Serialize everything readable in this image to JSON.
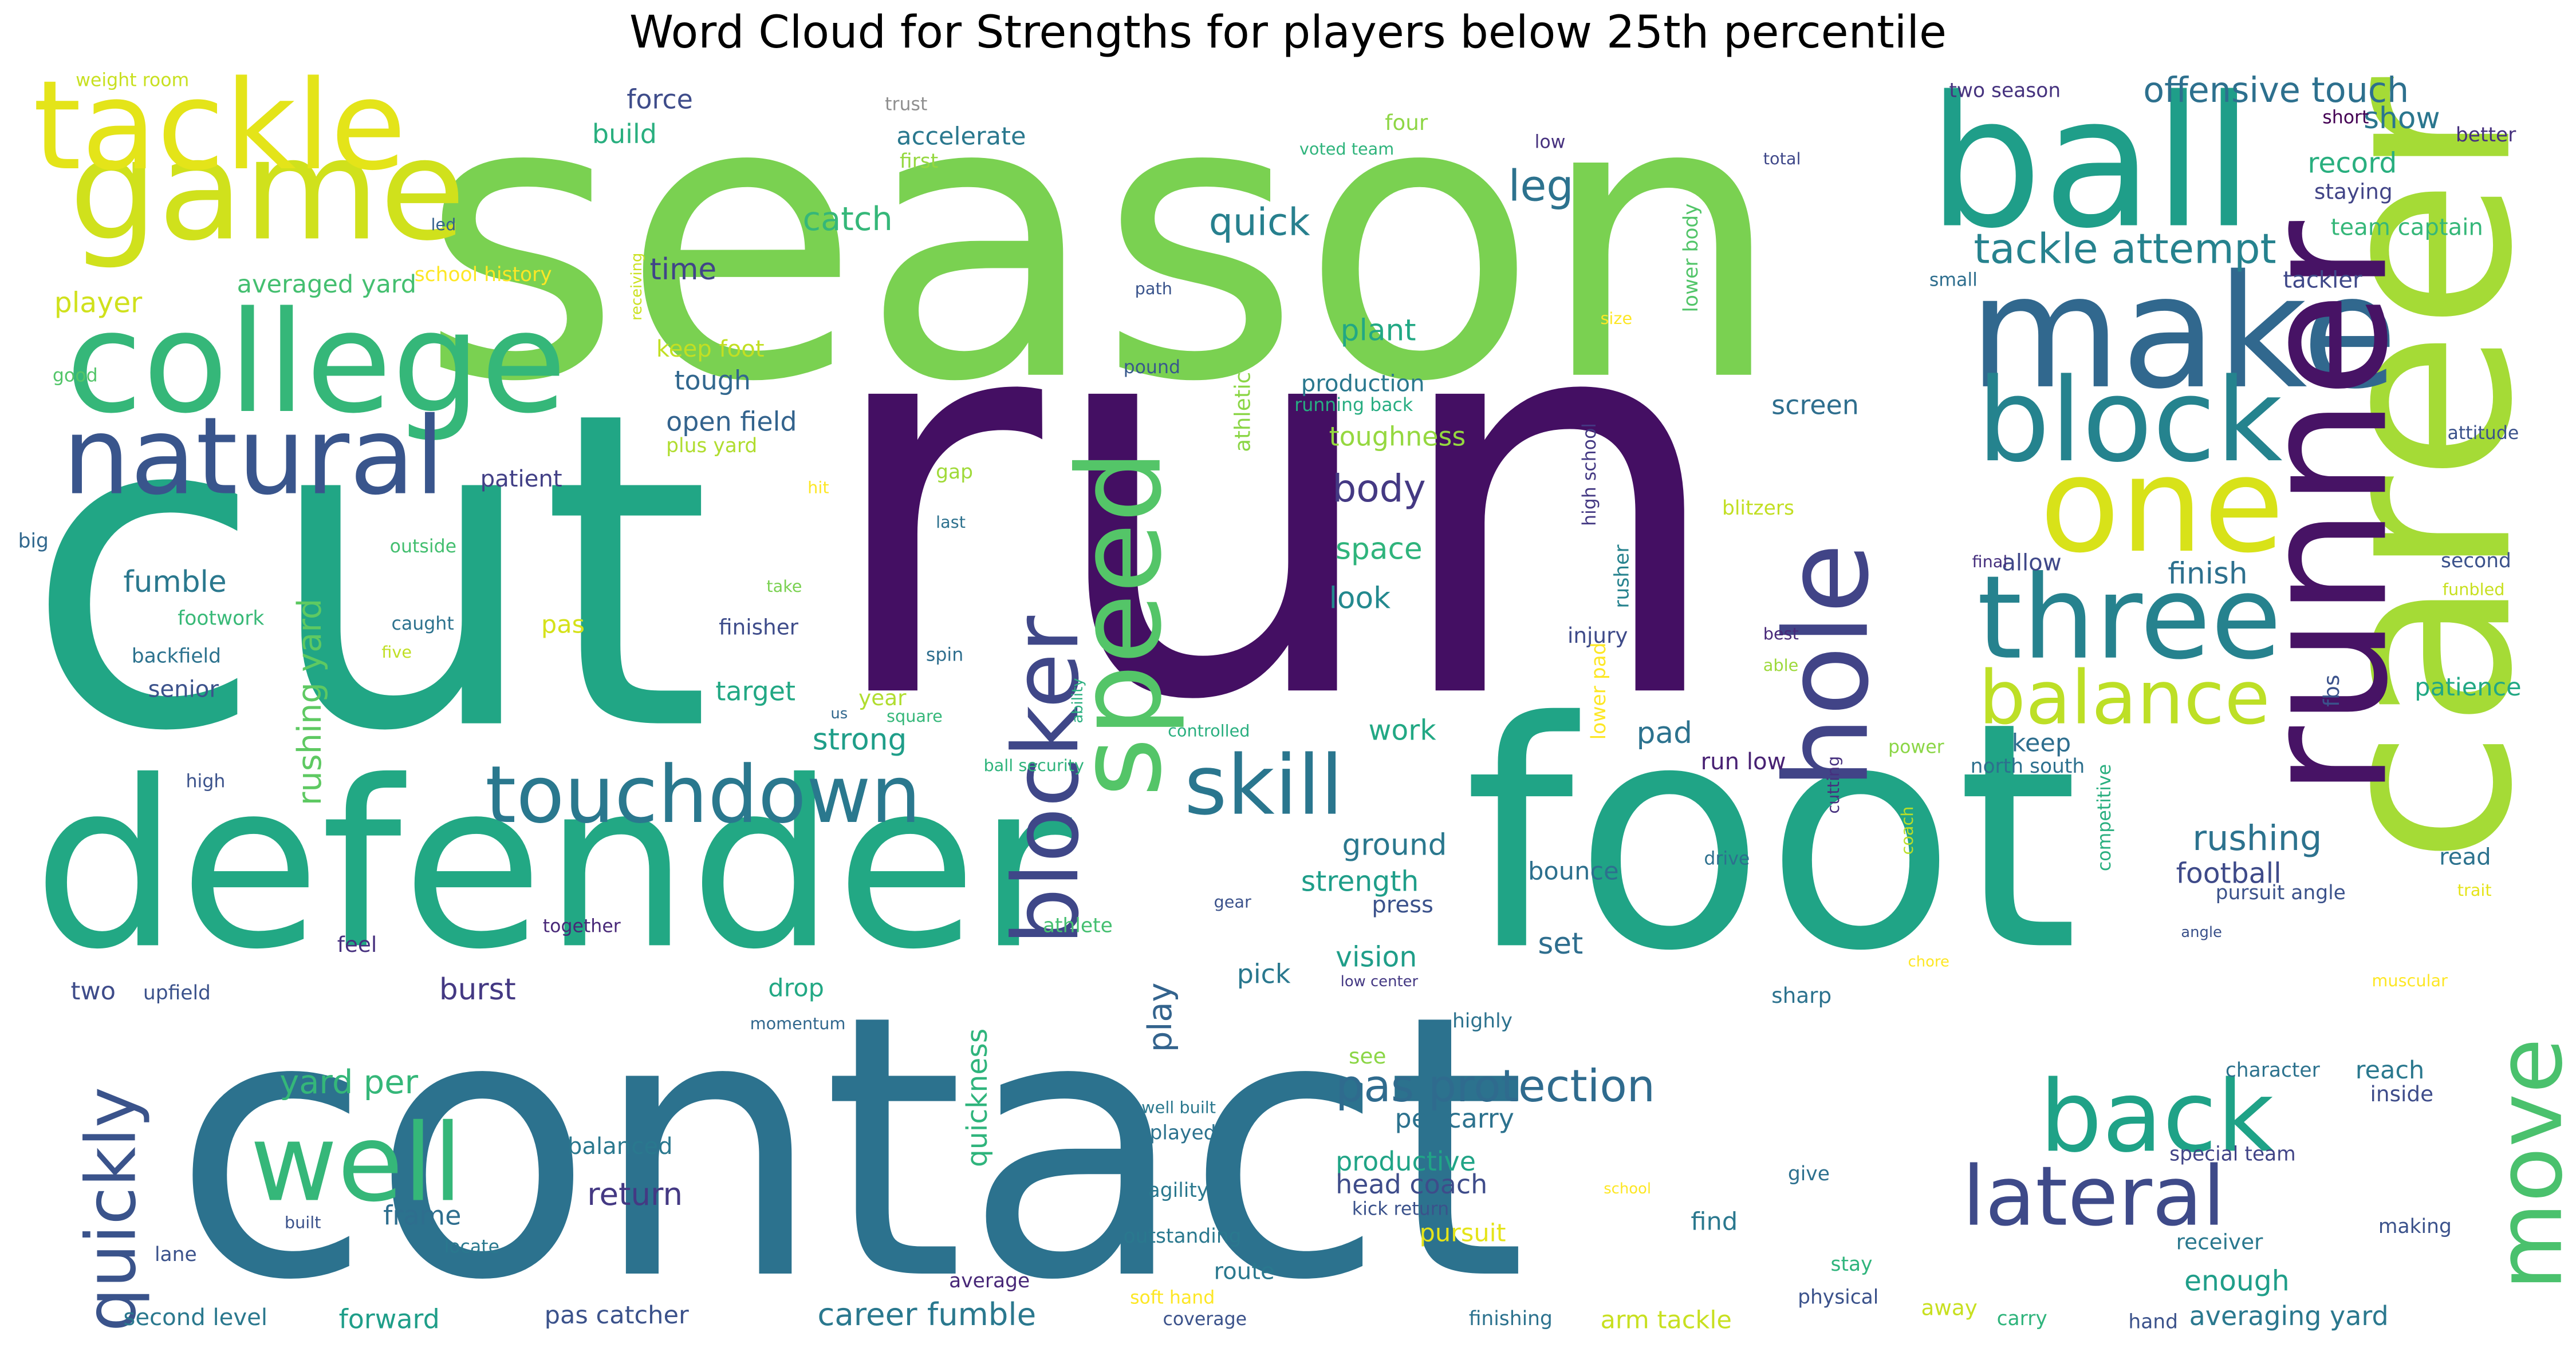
{
  "title": "Word Cloud for Strengths for players below 25th percentile",
  "words": [
    {
      "text": "season",
      "color": "#7ad151"
    },
    {
      "text": "run",
      "color": "#440f63"
    },
    {
      "text": "cut",
      "color": "#21a685"
    },
    {
      "text": "contact",
      "color": "#2c728e"
    },
    {
      "text": "foot",
      "color": "#20a486"
    },
    {
      "text": "defender",
      "color": "#22a884"
    },
    {
      "text": "career",
      "color": "#a5db36"
    },
    {
      "text": "ball",
      "color": "#1f9e89"
    },
    {
      "text": "game",
      "color": "#d0e11c"
    },
    {
      "text": "tackle",
      "color": "#e4e419"
    },
    {
      "text": "college",
      "color": "#35b779"
    },
    {
      "text": "make",
      "color": "#31688e"
    },
    {
      "text": "runner",
      "color": "#471365"
    },
    {
      "text": "one",
      "color": "#d8e219"
    },
    {
      "text": "block",
      "color": "#25838e"
    },
    {
      "text": "hole",
      "color": "#414487"
    },
    {
      "text": "three",
      "color": "#26828e"
    },
    {
      "text": "speed",
      "color": "#54c568"
    },
    {
      "text": "blocker",
      "color": "#3f4788"
    },
    {
      "text": "natural",
      "color": "#39558c"
    },
    {
      "text": "touchdown",
      "color": "#2a788e"
    },
    {
      "text": "skill",
      "color": "#2a768e"
    },
    {
      "text": "balance",
      "color": "#bddf26"
    },
    {
      "text": "back",
      "color": "#1fa287"
    },
    {
      "text": "well",
      "color": "#35b779"
    },
    {
      "text": "lateral",
      "color": "#3e4a89"
    },
    {
      "text": "move",
      "color": "#4ac16d"
    },
    {
      "text": "quickly",
      "color": "#3a538b"
    },
    {
      "text": "tackle attempt",
      "color": "#26828e"
    },
    {
      "text": "offensive touch",
      "color": "#2d708e"
    },
    {
      "text": "pas protection",
      "color": "#2f6b8e"
    },
    {
      "text": "rushing yard",
      "color": "#5ec962"
    },
    {
      "text": "leg",
      "color": "#2c728e"
    },
    {
      "text": "quick",
      "color": "#27808e"
    },
    {
      "text": "body",
      "color": "#443983"
    },
    {
      "text": "catch",
      "color": "#35b779"
    },
    {
      "text": "accelerate",
      "color": "#2a788e"
    },
    {
      "text": "build",
      "color": "#29af7f"
    },
    {
      "text": "force",
      "color": "#3e4c8a"
    },
    {
      "text": "trust",
      "color": "#8f8f8f"
    },
    {
      "text": "weight room",
      "color": "#c8e020"
    },
    {
      "text": "first",
      "color": "#95d840"
    },
    {
      "text": "voted team",
      "color": "#2fb47c"
    },
    {
      "text": "four",
      "color": "#8ed645"
    },
    {
      "text": "low",
      "color": "#46317e"
    },
    {
      "text": "total",
      "color": "#3f4889"
    },
    {
      "text": "better",
      "color": "#46307e"
    },
    {
      "text": "staying",
      "color": "#414487"
    },
    {
      "text": "team captain",
      "color": "#35b779"
    },
    {
      "text": "tackler",
      "color": "#3f4889"
    },
    {
      "text": "small",
      "color": "#2e6e8e"
    },
    {
      "text": "record",
      "color": "#29af7f"
    },
    {
      "text": "show",
      "color": "#2a768e"
    },
    {
      "text": "two season",
      "color": "#46337f"
    },
    {
      "text": "short",
      "color": "#440154"
    },
    {
      "text": "led",
      "color": "#34618d"
    },
    {
      "text": "receiving",
      "color": "#cae11f"
    },
    {
      "text": "player",
      "color": "#d0e11c"
    },
    {
      "text": "averaged yard",
      "color": "#44bf70"
    },
    {
      "text": "school history",
      "color": "#fde725"
    },
    {
      "text": "time",
      "color": "#404588"
    },
    {
      "text": "keep foot",
      "color": "#c2df23"
    },
    {
      "text": "tough",
      "color": "#31678e"
    },
    {
      "text": "open field",
      "color": "#33638d"
    },
    {
      "text": "plus yard",
      "color": "#b0dd2f"
    },
    {
      "text": "path",
      "color": "#3a548c"
    },
    {
      "text": "pound",
      "color": "#38598c"
    },
    {
      "text": "athletic",
      "color": "#8bd646"
    },
    {
      "text": "plant",
      "color": "#22a884"
    },
    {
      "text": "production",
      "color": "#2a788e"
    },
    {
      "text": "running back",
      "color": "#27ad81"
    },
    {
      "text": "toughness",
      "color": "#95d840"
    },
    {
      "text": "lower body",
      "color": "#52c569"
    },
    {
      "text": "size",
      "color": "#fde725"
    },
    {
      "text": "high school",
      "color": "#443983"
    },
    {
      "text": "rusher",
      "color": "#26828e"
    },
    {
      "text": "blitzers",
      "color": "#c2df23"
    },
    {
      "text": "screen",
      "color": "#2e6e8e"
    },
    {
      "text": "good",
      "color": "#52c569"
    },
    {
      "text": "patient",
      "color": "#424086"
    },
    {
      "text": "hit",
      "color": "#fde725"
    },
    {
      "text": "gap",
      "color": "#a0da39"
    },
    {
      "text": "last",
      "color": "#2d718e"
    },
    {
      "text": "attitude",
      "color": "#3b528b"
    },
    {
      "text": "big",
      "color": "#31688e"
    },
    {
      "text": "outside",
      "color": "#44bf70"
    },
    {
      "text": "take",
      "color": "#7ad151"
    },
    {
      "text": "space",
      "color": "#2fb47c"
    },
    {
      "text": "look",
      "color": "#23898e"
    },
    {
      "text": "fumble",
      "color": "#2a788e"
    },
    {
      "text": "footwork",
      "color": "#38b977"
    },
    {
      "text": "caught",
      "color": "#2c728e"
    },
    {
      "text": "five",
      "color": "#c0df25"
    },
    {
      "text": "finisher",
      "color": "#3e4c8a"
    },
    {
      "text": "backfield",
      "color": "#2c728e"
    },
    {
      "text": "senior",
      "color": "#3b528b"
    },
    {
      "text": "pas",
      "color": "#d5e21a"
    },
    {
      "text": "spin",
      "color": "#2e6e8e"
    },
    {
      "text": "target",
      "color": "#22a884"
    },
    {
      "text": "year",
      "color": "#b0dd2f"
    },
    {
      "text": "square",
      "color": "#35b779"
    },
    {
      "text": "us",
      "color": "#31688e"
    },
    {
      "text": "ability",
      "color": "#29af7f"
    },
    {
      "text": "strong",
      "color": "#1f9e89"
    },
    {
      "text": "high",
      "color": "#3b528b"
    },
    {
      "text": "ball security",
      "color": "#2fb47c"
    },
    {
      "text": "controlled",
      "color": "#29af7f"
    },
    {
      "text": "work",
      "color": "#22a884"
    },
    {
      "text": "allow",
      "color": "#3f4889"
    },
    {
      "text": "finish",
      "color": "#2d708e"
    },
    {
      "text": "final",
      "color": "#46307e"
    },
    {
      "text": "second",
      "color": "#3b528b"
    },
    {
      "text": "funbled",
      "color": "#c8e020"
    },
    {
      "text": "best",
      "color": "#482878"
    },
    {
      "text": "able",
      "color": "#9dd93b"
    },
    {
      "text": "injury",
      "color": "#3e4a89"
    },
    {
      "text": "patience",
      "color": "#22a884"
    },
    {
      "text": "keep",
      "color": "#2e6e8e"
    },
    {
      "text": "fbs",
      "color": "#3b528b"
    },
    {
      "text": "power",
      "color": "#8bd646"
    },
    {
      "text": "north south",
      "color": "#2d708e"
    },
    {
      "text": "run low",
      "color": "#482173"
    },
    {
      "text": "pad",
      "color": "#2c728e"
    },
    {
      "text": "lower pad",
      "color": "#fde725"
    },
    {
      "text": "rushing",
      "color": "#2c728e"
    },
    {
      "text": "football",
      "color": "#3e4a89"
    },
    {
      "text": "read",
      "color": "#2c728e"
    },
    {
      "text": "trait",
      "color": "#e5e419"
    },
    {
      "text": "pursuit angle",
      "color": "#3b528b"
    },
    {
      "text": "competitive",
      "color": "#29af7f"
    },
    {
      "text": "angle",
      "color": "#3b528b"
    },
    {
      "text": "muscular",
      "color": "#fde725"
    },
    {
      "text": "ground",
      "color": "#2a788e"
    },
    {
      "text": "strength",
      "color": "#1f9e89"
    },
    {
      "text": "press",
      "color": "#3b528b"
    },
    {
      "text": "bounce",
      "color": "#2d708e"
    },
    {
      "text": "cutting",
      "color": "#46307e"
    },
    {
      "text": "coach",
      "color": "#b8de29"
    },
    {
      "text": "drive",
      "color": "#2d708e"
    },
    {
      "text": "gear",
      "color": "#3b528b"
    },
    {
      "text": "chore",
      "color": "#fde725"
    },
    {
      "text": "set",
      "color": "#2e6e8e"
    },
    {
      "text": "vision",
      "color": "#1f9e89"
    },
    {
      "text": "pick",
      "color": "#2a788e"
    },
    {
      "text": "low center",
      "color": "#443983"
    },
    {
      "text": "sharp",
      "color": "#2c728e"
    },
    {
      "text": "athlete",
      "color": "#44bf70"
    },
    {
      "text": "together",
      "color": "#482878"
    },
    {
      "text": "feel",
      "color": "#46307e"
    },
    {
      "text": "upfield",
      "color": "#3b528b"
    },
    {
      "text": "two",
      "color": "#3e4c8a"
    },
    {
      "text": "burst",
      "color": "#443983"
    },
    {
      "text": "drop",
      "color": "#22a884"
    },
    {
      "text": "momentum",
      "color": "#31688e"
    },
    {
      "text": "highly",
      "color": "#2c728e"
    },
    {
      "text": "play",
      "color": "#33638d"
    },
    {
      "text": "see",
      "color": "#8bd646"
    },
    {
      "text": "yard per",
      "color": "#35b779"
    },
    {
      "text": "per carry",
      "color": "#2c728e"
    },
    {
      "text": "character",
      "color": "#2c728e"
    },
    {
      "text": "reach",
      "color": "#2a788e"
    },
    {
      "text": "inside",
      "color": "#3e4c8a"
    },
    {
      "text": "quickness",
      "color": "#2fb47c"
    },
    {
      "text": "well built",
      "color": "#2a788e"
    },
    {
      "text": "played",
      "color": "#2c728e"
    },
    {
      "text": "productive",
      "color": "#20a486"
    },
    {
      "text": "head coach",
      "color": "#3e4c8a"
    },
    {
      "text": "special team",
      "color": "#414487"
    },
    {
      "text": "give",
      "color": "#2d708e"
    },
    {
      "text": "balanced",
      "color": "#2a788e"
    },
    {
      "text": "return",
      "color": "#443983"
    },
    {
      "text": "frame",
      "color": "#2e6e8e"
    },
    {
      "text": "agility",
      "color": "#2a788e"
    },
    {
      "text": "kick return",
      "color": "#3b528b"
    },
    {
      "text": "school",
      "color": "#fde725"
    },
    {
      "text": "pursuit",
      "color": "#e5e419"
    },
    {
      "text": "find",
      "color": "#2a788e"
    },
    {
      "text": "making",
      "color": "#3b528b"
    },
    {
      "text": "built",
      "color": "#3b528b"
    },
    {
      "text": "locate",
      "color": "#2a788e"
    },
    {
      "text": "outstanding",
      "color": "#2a788e"
    },
    {
      "text": "receiver",
      "color": "#2a788e"
    },
    {
      "text": "lane",
      "color": "#3b528b"
    },
    {
      "text": "average",
      "color": "#482878"
    },
    {
      "text": "route",
      "color": "#2a788e"
    },
    {
      "text": "soft hand",
      "color": "#fde725"
    },
    {
      "text": "stay",
      "color": "#2fb47c"
    },
    {
      "text": "enough",
      "color": "#1f9e89"
    },
    {
      "text": "coverage",
      "color": "#3b528b"
    },
    {
      "text": "away",
      "color": "#c8e020"
    },
    {
      "text": "physical",
      "color": "#3b528b"
    },
    {
      "text": "second level",
      "color": "#2a788e"
    },
    {
      "text": "forward",
      "color": "#1f9e89"
    },
    {
      "text": "pas catcher",
      "color": "#3b528b"
    },
    {
      "text": "career fumble",
      "color": "#2a788e"
    },
    {
      "text": "finishing",
      "color": "#2c728e"
    },
    {
      "text": "arm tackle",
      "color": "#c8e020"
    },
    {
      "text": "carry",
      "color": "#2fb47c"
    },
    {
      "text": "hand",
      "color": "#3b528b"
    },
    {
      "text": "averaging yard",
      "color": "#2a788e"
    }
  ]
}
